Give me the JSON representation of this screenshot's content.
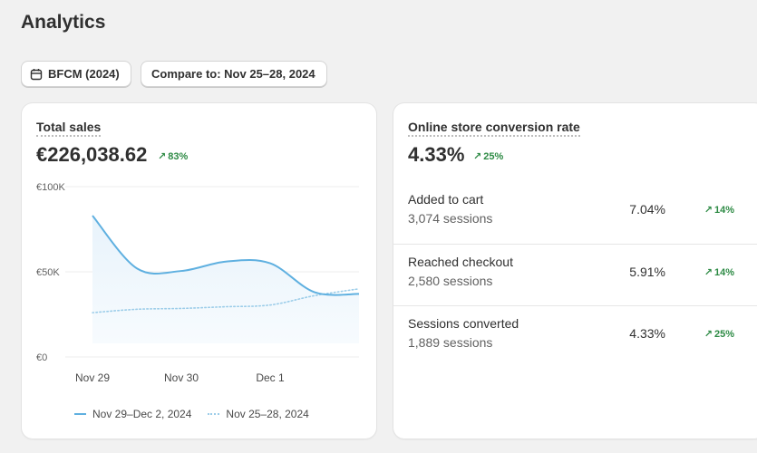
{
  "page": {
    "title": "Analytics"
  },
  "filters": {
    "date_range": "BFCM (2024)",
    "compare": "Compare to: Nov 25–28, 2024"
  },
  "sales_card": {
    "title": "Total sales",
    "value": "€226,038.62",
    "change": "83%",
    "change_direction": "up"
  },
  "chart_data": {
    "type": "area",
    "title": "",
    "x": [
      "Nov 29",
      "Nov 29 12:00",
      "Nov 30",
      "Nov 30 12:00",
      "Dec 1",
      "Dec 1 12:00",
      "Dec 2"
    ],
    "x_tick_labels": [
      "Nov 29",
      "Nov 30",
      "Dec 1"
    ],
    "y_tick_labels": [
      "€100K",
      "€50K",
      "€0"
    ],
    "ylim": [
      0,
      100000
    ],
    "grid": true,
    "legend_position": "bottom",
    "series": [
      {
        "name": "Nov 29–Dec 2, 2024",
        "style": "solid",
        "color": "#5fb0e0",
        "values": [
          83000,
          52000,
          50500,
          56000,
          55000,
          38000,
          37000
        ]
      },
      {
        "name": "Nov 25–28, 2024",
        "style": "dotted",
        "color": "#9ccde9",
        "values": [
          26000,
          28000,
          28500,
          29500,
          30500,
          36000,
          40000
        ]
      }
    ]
  },
  "conversion_card": {
    "title": "Online store conversion rate",
    "value": "4.33%",
    "change": "25%",
    "change_direction": "up",
    "rows": [
      {
        "label": "Added to cart",
        "sessions": "3,074 sessions",
        "rate": "7.04%",
        "change": "14%"
      },
      {
        "label": "Reached checkout",
        "sessions": "2,580 sessions",
        "rate": "5.91%",
        "change": "14%"
      },
      {
        "label": "Sessions converted",
        "sessions": "1,889 sessions",
        "rate": "4.33%",
        "change": "25%"
      }
    ]
  },
  "colors": {
    "positive": "#2e8b45",
    "series_current": "#5fb0e0",
    "series_compare": "#9ccde9"
  },
  "icons": {
    "date_pill": "calendar-icon",
    "trend": "arrow-up-right-icon"
  }
}
